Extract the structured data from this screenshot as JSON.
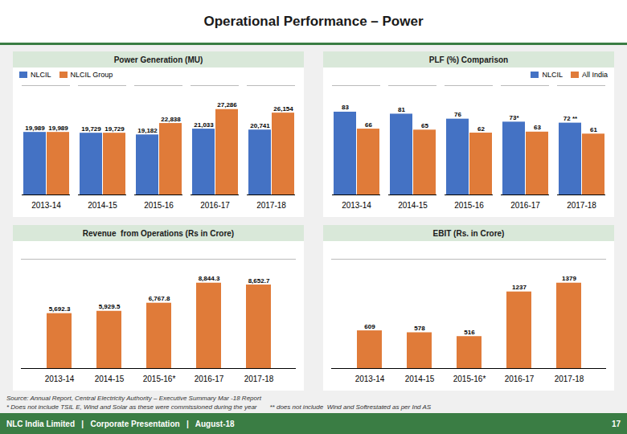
{
  "title": "Operational Performance – Power",
  "annotations": [
    "Source: Annual Report, Central Electricity Authority – Executive Summary Mar -18 Report",
    "* Does not include TSIL E, Wind and Solar as these were commissioned during the year",
    "** does not include  Wind and Softrestated as per Ind AS",
    "NLC India Limited   |   Corporate Presentation   |   August-18",
    "17"
  ],
  "chart_data": [
    {
      "type": "bar",
      "title": "Power Generation (MU)",
      "categories": [
        "2013-14",
        "2014-15",
        "2015-16",
        "2016-17",
        "2017-18"
      ],
      "series": [
        {
          "name": "NLCIL",
          "color": "#4472c4",
          "values": [
            19989,
            19729,
            19182,
            21033,
            20741
          ],
          "value_labels": [
            "19,989",
            "19,729",
            "19,182",
            "21,033",
            "20,741"
          ]
        },
        {
          "name": "NLCIL Group",
          "color": "#e07b39",
          "values": [
            19989,
            19729,
            22838,
            27286,
            26154
          ],
          "value_labels": [
            "19,989",
            "19,729",
            "22,838",
            "27,286",
            "26,154"
          ]
        }
      ],
      "ylim": [
        0,
        34926.08
      ],
      "tick_labels": "x",
      "data_labels": true,
      "legend": "upper left"
    },
    {
      "type": "bar",
      "title": "PLF (%) Comparison",
      "categories": [
        "2013-14",
        "2014-15",
        "2015-16",
        "2016-17",
        "2017-18"
      ],
      "series": [
        {
          "name": "NLCIL",
          "color": "#4472c4",
          "values": [
            83,
            81,
            76,
            73,
            72
          ],
          "value_labels": [
            "83",
            "81",
            "76",
            "73*",
            "72 **"
          ]
        },
        {
          "name": "All India",
          "color": "#e07b39",
          "values": [
            66,
            65,
            62,
            63,
            61
          ]
        }
      ],
      "ylim": [
        0,
        109.56
      ],
      "tick_labels": "x",
      "data_labels": true,
      "legend": "upper right"
    },
    {
      "type": "bar",
      "title": "Revenue  from Operations (Rs in Crore)",
      "categories": [
        "2013-14",
        "2014-15",
        "2015-16*",
        "2016-17",
        "2017-18"
      ],
      "values": [
        5692.3,
        5929.5,
        6767.8,
        8844.3,
        8652.7
      ],
      "value_labels": [
        "5,692.3",
        "5,929.5",
        "6,767.8",
        "8,844.3",
        "8,652.7"
      ],
      "color": "#e07b39",
      "ylim": [
        0,
        11320.704
      ],
      "tick_labels": "x",
      "data_labels": true
    },
    {
      "type": "bar",
      "title": "EBIT (Rs. in Crore)",
      "categories": [
        "2013-14",
        "2014-15",
        "2015-16*",
        "2016-17",
        "2017-18"
      ],
      "values": [
        609,
        578,
        516,
        1237,
        1379
      ],
      "color": "#e07b39",
      "ylim": [
        0,
        1765.12
      ],
      "tick_labels": "x",
      "data_labels": true
    }
  ]
}
